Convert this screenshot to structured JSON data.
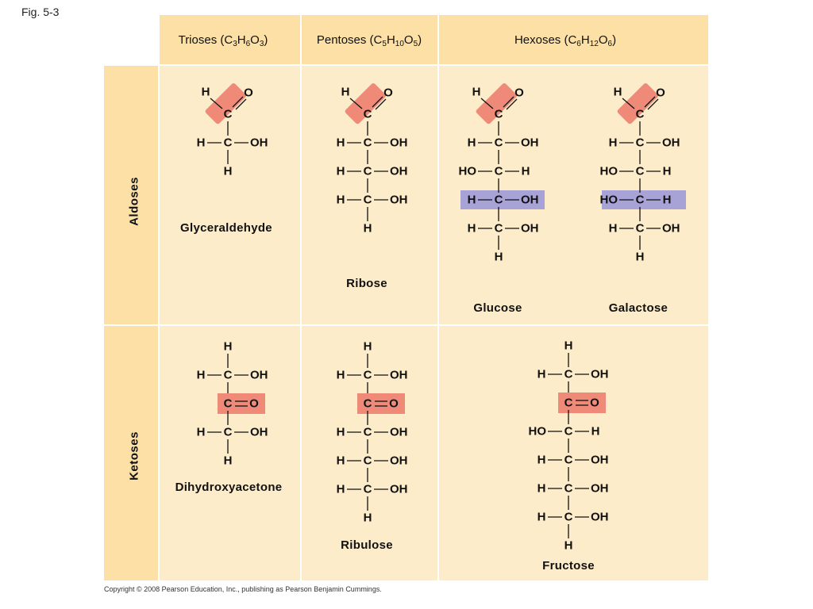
{
  "figure_label": "Fig. 5-3",
  "columns": [
    {
      "prefix": "Trioses (C",
      "formula": [
        [
          "3",
          "H"
        ],
        [
          "6",
          "O"
        ],
        [
          "3",
          ")"
        ]
      ]
    },
    {
      "prefix": "Pentoses (C",
      "formula": [
        [
          "5",
          "H"
        ],
        [
          "10",
          "O"
        ],
        [
          "5",
          ")"
        ]
      ]
    },
    {
      "prefix": "Hexoses (C",
      "formula": [
        [
          "6",
          "H"
        ],
        [
          "12",
          "O"
        ],
        [
          "6",
          ")"
        ]
      ]
    }
  ],
  "rows": [
    "Aldoses",
    "Ketoses"
  ],
  "molecules": [
    {
      "name": "Glyceraldehyde",
      "type": "aldose",
      "stereo": [
        "R"
      ]
    },
    {
      "name": "Ribose",
      "type": "aldose",
      "stereo": [
        "R",
        "R",
        "R"
      ]
    },
    {
      "name": "Glucose",
      "type": "aldose",
      "stereo": [
        "R",
        "L",
        "R",
        "R"
      ],
      "highlight_row": 3
    },
    {
      "name": "Galactose",
      "type": "aldose",
      "stereo": [
        "R",
        "L",
        "L",
        "R"
      ],
      "highlight_row": 3
    },
    {
      "name": "Dihydroxyacetone",
      "type": "ketose",
      "stereo": []
    },
    {
      "name": "Ribulose",
      "type": "ketose",
      "stereo": [
        "R",
        "R"
      ]
    },
    {
      "name": "Fructose",
      "type": "ketose",
      "stereo": [
        "L",
        "R",
        "R"
      ]
    }
  ],
  "atoms": {
    "hydrogen": "H",
    "carbon": "C",
    "oxygen": "O",
    "hydroxyl": "OH",
    "hydroxyl_left": "HO"
  },
  "colors": {
    "carbonyl_highlight": "#ef8a78",
    "stereo_highlight": "#a7a3d6"
  },
  "copyright": "Copyright © 2008 Pearson Education, Inc., publishing as Pearson Benjamin Cummings."
}
